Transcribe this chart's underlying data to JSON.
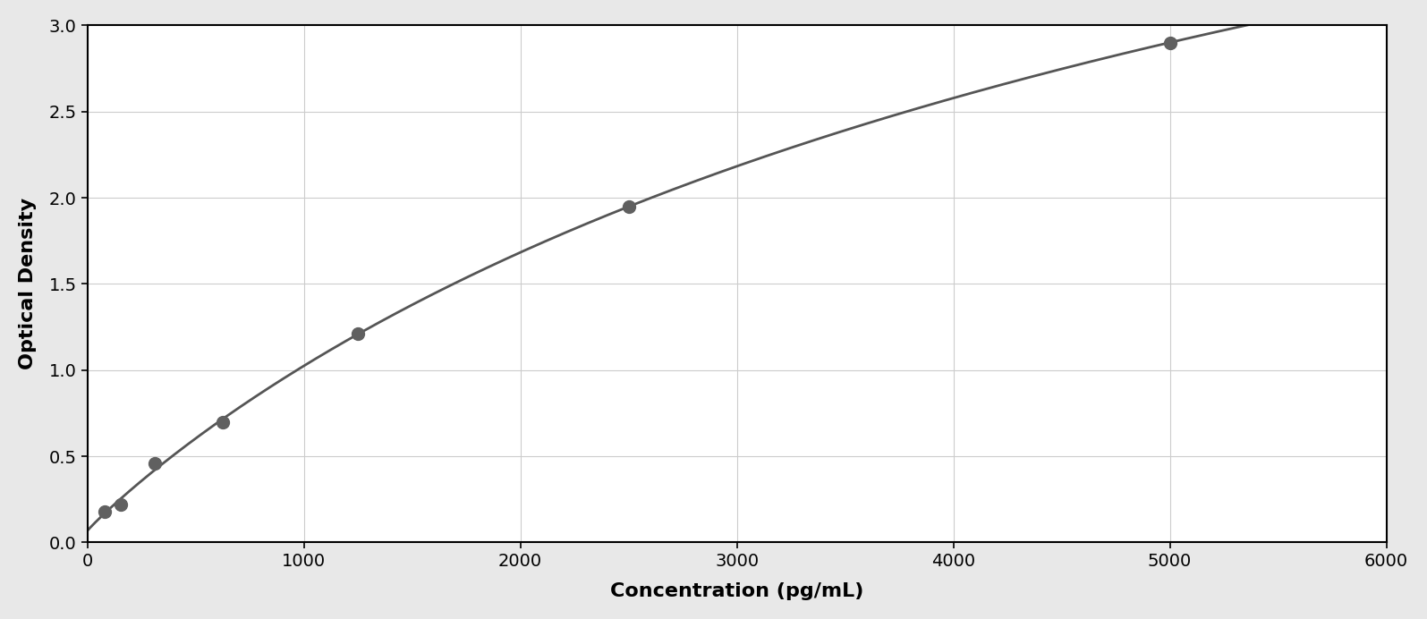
{
  "scatter_x": [
    78,
    156,
    313,
    625,
    1250,
    2500,
    5000
  ],
  "scatter_y": [
    0.18,
    0.22,
    0.46,
    0.7,
    1.21,
    1.95,
    2.9
  ],
  "point_color": "#606060",
  "line_color": "#555555",
  "xlabel": "Concentration (pg/mL)",
  "ylabel": "Optical Density",
  "xlim": [
    0,
    6000
  ],
  "ylim": [
    0,
    3.0
  ],
  "xticks": [
    0,
    1000,
    2000,
    3000,
    4000,
    5000,
    6000
  ],
  "yticks": [
    0,
    0.5,
    1.0,
    1.5,
    2.0,
    2.5,
    3.0
  ],
  "grid_color": "#cccccc",
  "background_color": "#ffffff",
  "border_color": "#000000",
  "xlabel_fontsize": 16,
  "ylabel_fontsize": 16,
  "tick_fontsize": 14,
  "marker_size": 10,
  "line_width": 2.0,
  "figure_bg": "#e8e8e8"
}
